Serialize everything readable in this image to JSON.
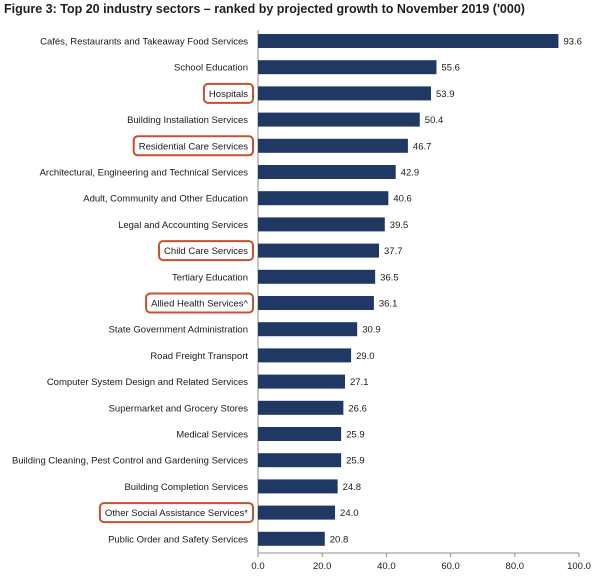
{
  "chart_data": {
    "type": "bar",
    "orientation": "horizontal",
    "title": "Figure 3: Top 20 industry sectors – ranked by projected growth to November 2019 ('000)",
    "categories": [
      "Cafés, Restaurants and Takeaway Food Services",
      "School Education",
      "Hospitals",
      "Building Installation Services",
      "Residential Care Services",
      "Architectural, Engineering and Technical Services",
      "Adult, Community and Other Education",
      "Legal and Accounting Services",
      "Child Care Services",
      "Tertiary Education",
      "Allied Health Services^",
      "State Government Administration",
      "Road Freight Transport",
      "Computer System Design and Related Services",
      "Supermarket and Grocery Stores",
      "Medical Services",
      "Building Cleaning, Pest Control and Gardening Services",
      "Building Completion Services",
      "Other Social Assistance Services*",
      "Public Order and Safety Services"
    ],
    "values": [
      93.6,
      55.6,
      53.9,
      50.4,
      46.7,
      42.9,
      40.6,
      39.5,
      37.7,
      36.5,
      36.1,
      30.9,
      29.0,
      27.1,
      26.6,
      25.9,
      25.9,
      24.8,
      24.0,
      20.8
    ],
    "value_labels": [
      "93.6",
      "55.6",
      "53.9",
      "50.4",
      "46.7",
      "42.9",
      "40.6",
      "39.5",
      "37.7",
      "36.5",
      "36.1",
      "30.9",
      "29.0",
      "27.1",
      "26.6",
      "25.9",
      "25.9",
      "24.8",
      "24.0",
      "20.8"
    ],
    "highlighted": [
      "Hospitals",
      "Residential Care Services",
      "Child Care Services",
      "Allied Health Services^",
      "Other Social Assistance Services*"
    ],
    "xlim": [
      0,
      100
    ],
    "xticks": [
      "0.0",
      "20.0",
      "40.0",
      "60.0",
      "80.0",
      "100.0"
    ],
    "xlabel": "",
    "ylabel": "",
    "grid": false,
    "legend": "none",
    "bar_color": "#1f3864",
    "highlight_color": "#c8502a"
  }
}
